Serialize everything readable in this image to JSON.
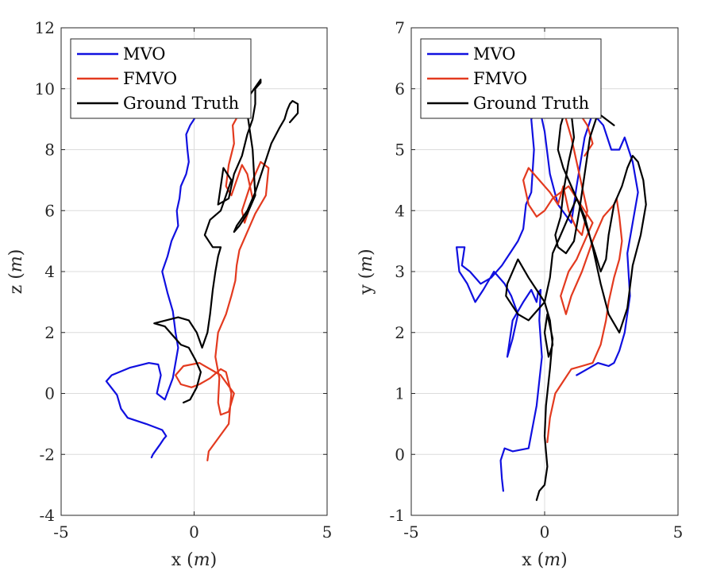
{
  "chart_data": [
    {
      "type": "line",
      "xlabel": "x",
      "ylabel": "z",
      "unit": "m",
      "xlim": [
        -5,
        5
      ],
      "ylim": [
        -4,
        12
      ],
      "xticks": [
        "-5",
        "0",
        "5"
      ],
      "yticks": [
        "-4",
        "-2",
        "0",
        "2",
        "4",
        "6",
        "8",
        "10",
        "12"
      ],
      "grid": true,
      "legend_position": "top-left",
      "series": [
        {
          "name": "MVO",
          "color": "#1010e0",
          "x": [
            -1.6,
            -1.55,
            -1.3,
            -1.15,
            -1.05,
            -1.2,
            -1.8,
            -2.5,
            -2.75,
            -2.9,
            -3.3,
            -3.1,
            -2.4,
            -1.7,
            -1.35,
            -1.25,
            -1.4,
            -1.1,
            -0.8,
            -0.6,
            -0.7,
            -0.8,
            -1.0,
            -1.2,
            -1.0,
            -0.85,
            -0.6,
            -0.65,
            -0.55,
            -0.5,
            -0.3,
            -0.2,
            -0.25,
            -0.3,
            -0.15,
            0.0,
            0.1,
            0.2,
            0.4,
            0.55
          ],
          "y": [
            -2.1,
            -2.0,
            -1.7,
            -1.5,
            -1.4,
            -1.2,
            -1.0,
            -0.8,
            -0.5,
            -0.05,
            0.4,
            0.6,
            0.85,
            1.0,
            0.95,
            0.6,
            0.0,
            -0.2,
            0.5,
            1.5,
            2.0,
            2.7,
            3.3,
            4.0,
            4.5,
            5.0,
            5.5,
            6.0,
            6.4,
            6.8,
            7.2,
            7.6,
            8.0,
            8.5,
            8.8,
            9.0,
            9.2,
            9.4,
            9.4,
            9.3
          ]
        },
        {
          "name": "FMVO",
          "color": "#e33a1f",
          "x": [
            0.5,
            0.55,
            0.8,
            1.3,
            1.4,
            1.2,
            1.0,
            0.6,
            0.2,
            -0.1,
            -0.5,
            -0.7,
            -0.4,
            0.2,
            1.0,
            1.5,
            1.3,
            1.0,
            0.9,
            0.95,
            0.8,
            0.9,
            1.2,
            1.4,
            1.55,
            1.6,
            1.7,
            2.0,
            2.3,
            2.7,
            2.8,
            2.5,
            2.1,
            1.8,
            1.9,
            2.2,
            2.0,
            1.8,
            1.6,
            1.4,
            1.2,
            1.3,
            1.5,
            1.45,
            1.7
          ],
          "y": [
            -2.2,
            -1.9,
            -1.6,
            -1.0,
            0.0,
            0.7,
            0.8,
            0.5,
            0.3,
            0.2,
            0.3,
            0.6,
            0.9,
            1.0,
            0.6,
            0.0,
            -0.6,
            -0.7,
            -0.3,
            0.5,
            1.2,
            2.0,
            2.6,
            3.2,
            3.7,
            4.2,
            4.7,
            5.3,
            5.9,
            6.5,
            7.4,
            7.6,
            6.8,
            6.0,
            5.6,
            6.4,
            7.2,
            7.5,
            7.0,
            6.5,
            6.8,
            7.5,
            8.2,
            8.8,
            9.2
          ]
        },
        {
          "name": "Ground Truth",
          "color": "#000000",
          "x": [
            -0.4,
            -0.15,
            0.1,
            0.25,
            0.05,
            -0.2,
            -0.5,
            -1.1,
            -1.5,
            -0.6,
            -0.2,
            0.1,
            0.3,
            0.5,
            0.6,
            0.7,
            0.8,
            0.9,
            1.0,
            0.7,
            0.4,
            0.6,
            1.0,
            1.2,
            1.4,
            1.1,
            0.9,
            1.3,
            1.5,
            1.8,
            2.0,
            2.2,
            2.3,
            2.3,
            2.4,
            2.5,
            2.5,
            2.1,
            2.0,
            2.2,
            2.3,
            2.0,
            1.7,
            1.5,
            1.6,
            2.0,
            2.3,
            2.6,
            2.9,
            3.2,
            3.4,
            3.5,
            3.6,
            3.7,
            3.9,
            3.9,
            3.6
          ],
          "y": [
            -0.3,
            -0.2,
            0.2,
            0.7,
            1.1,
            1.5,
            1.6,
            2.2,
            2.3,
            2.5,
            2.4,
            2.0,
            1.5,
            2.0,
            2.6,
            3.4,
            4.0,
            4.5,
            4.8,
            4.8,
            5.2,
            5.7,
            6.0,
            6.5,
            7.0,
            7.4,
            6.2,
            6.4,
            7.2,
            7.8,
            8.5,
            9.0,
            9.5,
            10.0,
            10.1,
            10.2,
            10.3,
            9.8,
            9.2,
            8.0,
            6.5,
            5.9,
            5.5,
            5.3,
            5.5,
            6.0,
            6.6,
            7.4,
            8.2,
            8.7,
            9.0,
            9.3,
            9.5,
            9.6,
            9.5,
            9.2,
            8.9
          ]
        }
      ]
    },
    {
      "type": "line",
      "xlabel": "x",
      "ylabel": "y",
      "unit": "m",
      "xlim": [
        -5,
        5
      ],
      "ylim": [
        -1,
        7
      ],
      "xticks": [
        "-5",
        "0",
        "5"
      ],
      "yticks": [
        "-1",
        "0",
        "1",
        "2",
        "3",
        "4",
        "5",
        "6",
        "7"
      ],
      "grid": true,
      "legend_position": "top-left",
      "series": [
        {
          "name": "MVO",
          "color": "#1010e0",
          "x": [
            -1.55,
            -1.6,
            -1.65,
            -1.5,
            -1.2,
            -0.6,
            -0.3,
            -0.1,
            -0.2,
            -0.15,
            -0.25,
            -0.3,
            -0.5,
            -0.8,
            -1.2,
            -1.4,
            -1.2,
            -1.0,
            -1.25,
            -1.5,
            -1.9,
            -2.3,
            -2.6,
            -2.9,
            -3.2,
            -3.3,
            -3.0,
            -3.1,
            -2.8,
            -2.4,
            -2.0,
            -1.6,
            -1.3,
            -1.0,
            -0.8,
            -0.7,
            -0.5,
            -0.4,
            -0.5,
            -0.2,
            0.0,
            0.2,
            0.5,
            1.0,
            1.2,
            1.5,
            1.8,
            2.2,
            2.5,
            2.8,
            3.0,
            3.3,
            3.5,
            3.3,
            3.1,
            3.2,
            3.0,
            2.8,
            2.6,
            2.4,
            2.0,
            1.6,
            1.2
          ],
          "y": [
            -0.6,
            -0.4,
            -0.1,
            0.1,
            0.05,
            0.1,
            0.8,
            1.6,
            2.2,
            2.7,
            2.65,
            2.5,
            2.7,
            2.5,
            2.2,
            1.6,
            1.9,
            2.3,
            2.6,
            2.8,
            3.0,
            2.7,
            2.5,
            2.8,
            3.0,
            3.4,
            3.4,
            3.1,
            3.0,
            2.8,
            2.9,
            3.1,
            3.3,
            3.5,
            3.7,
            4.1,
            4.3,
            5.0,
            5.5,
            5.7,
            5.3,
            4.6,
            4.1,
            3.8,
            4.4,
            5.2,
            5.6,
            5.4,
            5.0,
            5.0,
            5.2,
            4.8,
            4.3,
            3.8,
            3.3,
            2.6,
            2.0,
            1.7,
            1.5,
            1.45,
            1.5,
            1.4,
            1.3
          ]
        },
        {
          "name": "FMVO",
          "color": "#e33a1f",
          "x": [
            0.1,
            0.2,
            0.4,
            0.7,
            1.0,
            1.4,
            1.8,
            2.1,
            2.3,
            2.4,
            2.6,
            2.8,
            2.9,
            2.8,
            2.7,
            2.6,
            2.2,
            1.8,
            1.4,
            1.0,
            0.8,
            0.6,
            0.9,
            1.2,
            1.5,
            1.8,
            1.5,
            1.2,
            0.9,
            0.6,
            0.3,
            0.0,
            -0.3,
            -0.6,
            -0.8,
            -0.6,
            -0.2,
            0.2,
            0.5,
            0.7,
            0.9,
            1.2,
            1.4,
            1.6,
            1.4,
            1.2,
            1.0,
            0.8,
            1.0,
            1.3,
            1.6,
            1.8,
            1.5
          ],
          "y": [
            0.2,
            0.6,
            1.0,
            1.2,
            1.4,
            1.45,
            1.5,
            1.8,
            2.2,
            2.5,
            2.9,
            3.2,
            3.5,
            3.9,
            4.2,
            4.1,
            3.9,
            3.5,
            3.0,
            2.6,
            2.3,
            2.6,
            3.0,
            3.2,
            3.5,
            3.8,
            4.0,
            4.2,
            4.4,
            4.3,
            4.2,
            4.0,
            3.9,
            4.1,
            4.5,
            4.7,
            4.5,
            4.3,
            4.1,
            4.4,
            4.0,
            3.7,
            3.6,
            4.0,
            4.4,
            4.8,
            5.2,
            5.5,
            5.8,
            5.6,
            5.4,
            5.1,
            4.9
          ]
        },
        {
          "name": "Ground Truth",
          "color": "#000000",
          "x": [
            -0.3,
            -0.2,
            0.0,
            0.1,
            0.0,
            0.05,
            0.2,
            0.3,
            0.1,
            0.0,
            0.15,
            0.3,
            0.2,
            0.0,
            -0.3,
            -0.6,
            -1.0,
            -1.4,
            -1.45,
            -1.0,
            -0.6,
            -0.3,
            0.0,
            0.2,
            0.3,
            0.6,
            0.9,
            1.2,
            1.5,
            1.8,
            2.1,
            2.4,
            2.8,
            3.1,
            3.3,
            3.6,
            3.8,
            3.7,
            3.5,
            3.3,
            3.1,
            2.9,
            2.6,
            2.4,
            2.3,
            2.1,
            1.9,
            1.6,
            1.3,
            1.0,
            0.7,
            0.5,
            0.6,
            0.8,
            1.0,
            1.1,
            0.9,
            0.7,
            0.6,
            0.4,
            0.5,
            0.8,
            1.1,
            1.3,
            1.5,
            1.7,
            2.0,
            2.3,
            2.6
          ],
          "y": [
            -0.75,
            -0.6,
            -0.5,
            -0.2,
            0.3,
            0.8,
            1.4,
            1.9,
            2.3,
            2.0,
            1.6,
            1.8,
            2.2,
            2.5,
            2.7,
            2.9,
            3.2,
            2.8,
            2.6,
            2.3,
            2.2,
            2.35,
            2.5,
            2.9,
            3.3,
            3.6,
            3.9,
            4.2,
            3.9,
            3.4,
            2.8,
            2.3,
            2.0,
            2.4,
            3.1,
            3.6,
            4.1,
            4.5,
            4.8,
            4.9,
            4.7,
            4.4,
            4.1,
            3.6,
            3.2,
            3.0,
            3.3,
            3.7,
            4.1,
            4.4,
            4.7,
            5.0,
            5.4,
            5.7,
            5.6,
            5.2,
            4.8,
            4.3,
            3.9,
            3.6,
            3.4,
            3.3,
            3.5,
            4.0,
            4.6,
            5.2,
            5.6,
            5.5,
            5.4
          ]
        }
      ]
    }
  ]
}
